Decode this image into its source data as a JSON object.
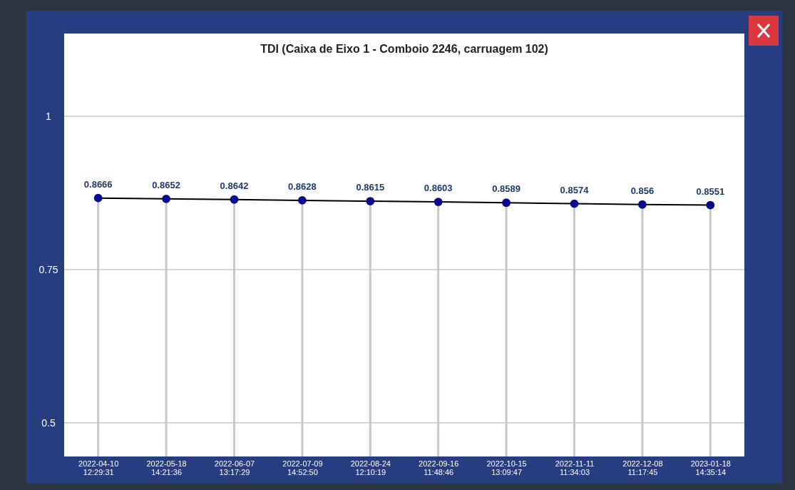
{
  "chart_data": {
    "type": "line",
    "title": "TDI (Caixa de Eixo 1 - Comboio 2246, carruagem 102)",
    "categories": [
      "2022-04-10 12:29:31",
      "2022-05-18 14:21:36",
      "2022-06-07 13:17:29",
      "2022-07-09 14:52:50",
      "2022-08-24 12:10:19",
      "2022-09-16 11:48:46",
      "2022-10-15 13:09:47",
      "2022-11-11 11:34:03",
      "2022-12-08 11:17:45",
      "2023-01-18 14:35:14"
    ],
    "series": [
      {
        "color": "#000000",
        "values": [
          0.8666,
          0.8652,
          0.8642,
          0.8628,
          0.8615,
          0.8603,
          0.8589,
          0.8574,
          0.856,
          0.8551
        ]
      }
    ],
    "ylim": [
      0.445,
      1.135
    ],
    "yticks": [
      0.5,
      0.75,
      1
    ],
    "grid": true,
    "marker": "circle",
    "data_labels": true
  }
}
